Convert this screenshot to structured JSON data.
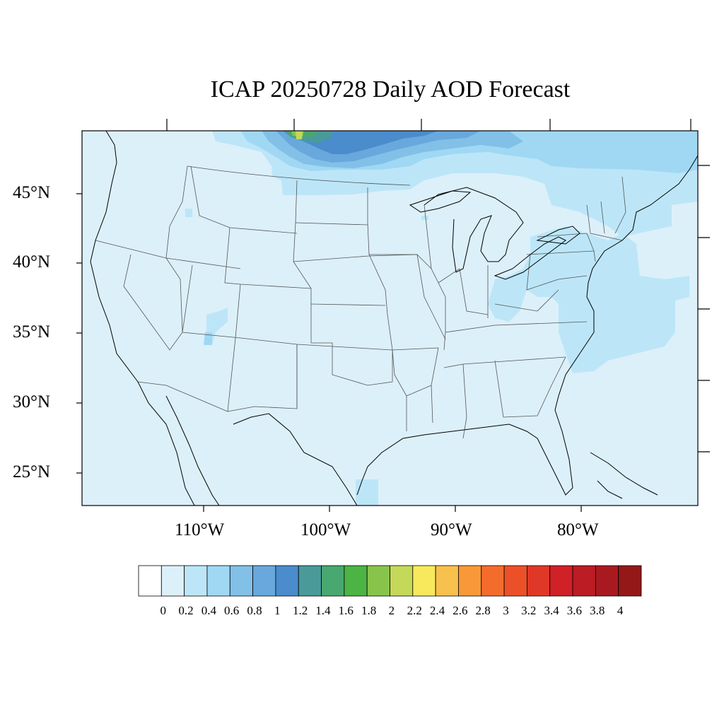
{
  "title": "ICAP 20250728 Daily AOD Forecast",
  "map": {
    "region": "Contiguous United States",
    "background_color": "#dcf0fa",
    "lat_labels": [
      "45°N",
      "40°N",
      "35°N",
      "30°N",
      "25°N"
    ],
    "lon_labels": [
      "110°W",
      "100°W",
      "90°W",
      "80°W"
    ]
  },
  "colorbar": {
    "labels": [
      "0",
      "0.2",
      "0.4",
      "0.6",
      "0.8",
      "1",
      "1.2",
      "1.4",
      "1.6",
      "1.8",
      "2",
      "2.2",
      "2.4",
      "2.6",
      "2.8",
      "3",
      "3.2",
      "3.4",
      "3.6",
      "3.8",
      "4"
    ],
    "colors": [
      "#ffffff",
      "#dcf0fa",
      "#bce6f8",
      "#a0d8f4",
      "#82c0e8",
      "#68a8dc",
      "#4a8ccc",
      "#4a9a9a",
      "#48a870",
      "#4cb444",
      "#88c44c",
      "#c4d85a",
      "#f8e85c",
      "#f8c04c",
      "#f89838",
      "#f46c2c",
      "#ec5028",
      "#e03828",
      "#d02028",
      "#bc1c24",
      "#a81a20",
      "#941818"
    ]
  }
}
